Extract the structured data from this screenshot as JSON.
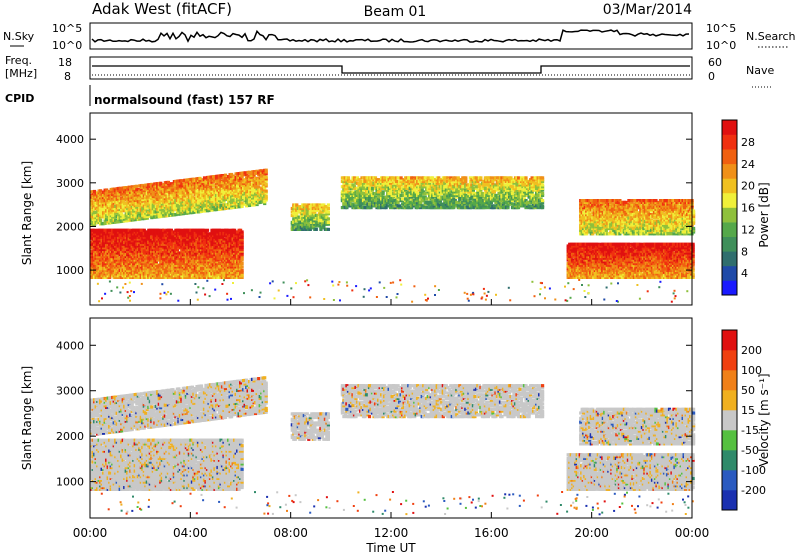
{
  "header": {
    "station": "Adak West (fitACF)",
    "beam": "Beam 01",
    "date": "03/Mar/2014"
  },
  "noise_panel": {
    "left_label": "N.Sky",
    "right_label": "N.Search",
    "left_ticks": [
      "10^5",
      "10^0"
    ],
    "right_ticks": [
      "10^5",
      "10^0"
    ]
  },
  "freq_panel": {
    "left_label_1": "Freq.",
    "left_label_2": "[MHz]",
    "right_label": "Nave",
    "left_ticks": [
      "18",
      "8"
    ],
    "right_ticks": [
      "60",
      "0"
    ]
  },
  "cpid": {
    "label": "CPID",
    "text": "normalsound (fast) 157 RF"
  },
  "chart_data": [
    {
      "type": "heatmap",
      "name": "power",
      "ylabel": "Slant Range [km]",
      "ylim": [
        200,
        4600
      ],
      "yticks": [
        "1000",
        "2000",
        "3000",
        "4000"
      ],
      "xlim": [
        0,
        24
      ],
      "colorbar": {
        "label": "Power [dB]",
        "ticks": [
          "4",
          "8",
          "12",
          "16",
          "20",
          "24",
          "28"
        ],
        "colors": [
          "#1a1aff",
          "#1f4aa8",
          "#2f6e6e",
          "#3f8f5a",
          "#55a84a",
          "#8fc03c",
          "#f0f03a",
          "#f0c020",
          "#f09018",
          "#f06010",
          "#f03010",
          "#e01010"
        ]
      },
      "echo_bands": [
        {
          "t0": 0,
          "t1": 6,
          "r0": 800,
          "r1": 1900,
          "level": "strong"
        },
        {
          "t0": 0,
          "t1": 7,
          "r0": 2000,
          "r1": 2800,
          "level": "medium"
        },
        {
          "t0": 8,
          "t1": 9.5,
          "r0": 1900,
          "r1": 2500,
          "level": "weak"
        },
        {
          "t0": 10,
          "t1": 18,
          "r0": 2400,
          "r1": 3100,
          "level": "weak"
        },
        {
          "t0": 19,
          "t1": 24,
          "r0": 800,
          "r1": 1600,
          "level": "strong"
        },
        {
          "t0": 19.5,
          "t1": 24,
          "r0": 1800,
          "r1": 2600,
          "level": "medium"
        }
      ]
    },
    {
      "type": "heatmap",
      "name": "velocity",
      "ylabel": "Slant Range [km]",
      "ylim": [
        200,
        4600
      ],
      "yticks": [
        "1000",
        "2000",
        "3000",
        "4000"
      ],
      "xlim": [
        0,
        24
      ],
      "xticks": [
        "00:00",
        "04:00",
        "08:00",
        "12:00",
        "16:00",
        "20:00",
        "00:00"
      ],
      "xlabel": "Time UT",
      "colorbar": {
        "label": "Velocity [m s⁻¹]",
        "ticks": [
          "200",
          "100",
          "50",
          "15",
          "-15",
          "-50",
          "-100",
          "-200"
        ],
        "colors": [
          "#1a30b0",
          "#2a5ac0",
          "#2f8a6a",
          "#55c040",
          "#c8c8c8",
          "#f0b020",
          "#f08018",
          "#f04010",
          "#e01010"
        ]
      }
    }
  ]
}
